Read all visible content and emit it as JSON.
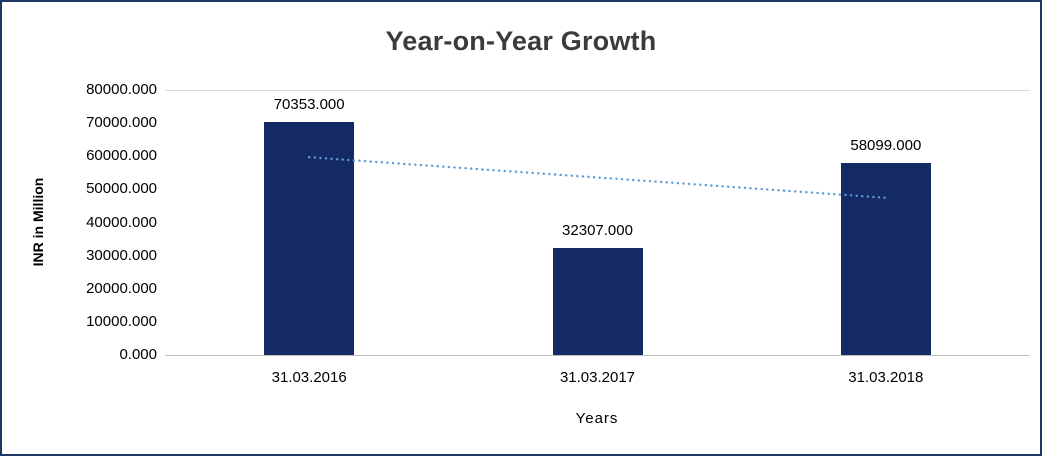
{
  "chart_data": {
    "type": "bar",
    "title": "Year-on-Year Growth",
    "xlabel": "Years",
    "ylabel": "INR in Million",
    "categories": [
      "31.03.2016",
      "31.03.2017",
      "31.03.2018"
    ],
    "values": [
      70353,
      32307,
      58099
    ],
    "data_labels": [
      "70353.000",
      "32307.000",
      "58099.000"
    ],
    "ylim": [
      0,
      80000
    ],
    "ytick_step": 10000,
    "ytick_labels": [
      "0.000",
      "10000.000",
      "20000.000",
      "30000.000",
      "40000.000",
      "50000.000",
      "60000.000",
      "70000.000",
      "80000.000"
    ],
    "bar_color": "#142A64",
    "trendline": {
      "type": "linear",
      "style": "dotted",
      "color": "#5B9BD5",
      "endpoint_values": [
        59713,
        47459
      ],
      "spans_categories": [
        0,
        2
      ]
    },
    "gridlines": "top-only",
    "legend": "none",
    "border_color": "#1F3864"
  }
}
